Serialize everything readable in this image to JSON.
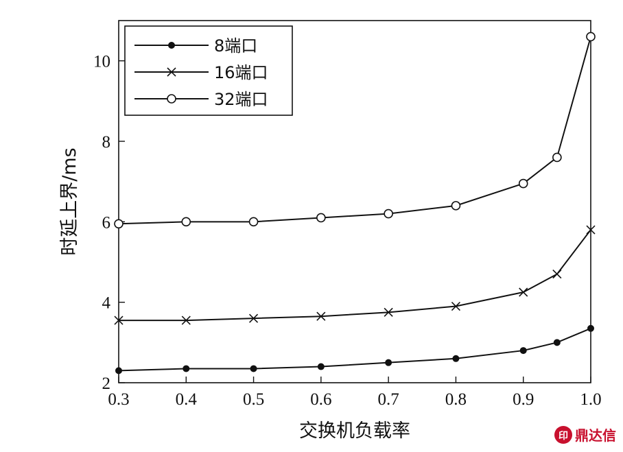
{
  "chart_data": {
    "type": "line",
    "xlabel": "交换机负载率",
    "ylabel": "时延上界/ms",
    "xlim": [
      0.3,
      1.0
    ],
    "ylim": [
      2,
      11
    ],
    "xticks": [
      "0.3",
      "0.4",
      "0.5",
      "0.6",
      "0.7",
      "0.8",
      "0.9",
      "1.0"
    ],
    "yticks": [
      "2",
      "4",
      "6",
      "8",
      "10"
    ],
    "x": [
      0.3,
      0.4,
      0.5,
      0.6,
      0.7,
      0.8,
      0.9,
      0.95,
      1.0
    ],
    "legend_position": "top-left",
    "series": [
      {
        "name": "8端口",
        "marker": "filled-circle",
        "values": [
          2.3,
          2.35,
          2.35,
          2.4,
          2.5,
          2.6,
          2.8,
          3.0,
          3.35
        ]
      },
      {
        "name": "16端口",
        "marker": "x",
        "values": [
          3.55,
          3.55,
          3.6,
          3.65,
          3.75,
          3.9,
          4.25,
          4.7,
          5.8
        ]
      },
      {
        "name": "32端口",
        "marker": "open-circle",
        "values": [
          5.95,
          6.0,
          6.0,
          6.1,
          6.2,
          6.4,
          6.95,
          7.6,
          10.6
        ]
      }
    ]
  },
  "watermark": {
    "text": "鼎达信"
  }
}
